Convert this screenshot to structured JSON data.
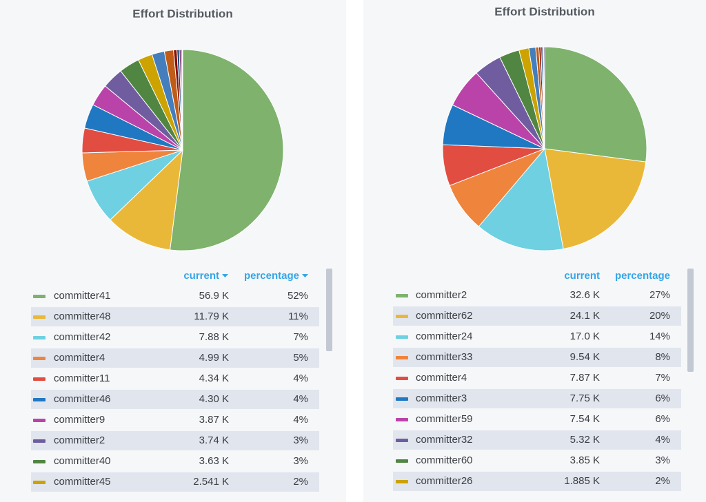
{
  "chart_data": [
    {
      "type": "pie",
      "title": "Effort Distribution",
      "columns": [
        "current",
        "percentage"
      ],
      "categories": [
        "committer41",
        "committer48",
        "committer42",
        "committer4",
        "committer11",
        "committer46",
        "committer9",
        "committer2",
        "committer40",
        "committer45",
        null,
        null,
        null,
        null,
        null,
        null,
        null
      ],
      "values": [
        56900,
        11790,
        7880,
        4990,
        4340,
        4300,
        3870,
        3740,
        3630,
        2541,
        2200,
        1600,
        600,
        400,
        300,
        200,
        100
      ],
      "value_labels": [
        "56.9 K",
        "11.79 K",
        "7.88 K",
        "4.99 K",
        "4.34 K",
        "4.30 K",
        "3.87 K",
        "3.74 K",
        "3.63 K",
        "2.541 K",
        null,
        null,
        null,
        null,
        null,
        null,
        null
      ],
      "percentages": [
        52,
        11,
        7,
        5,
        4,
        4,
        4,
        3,
        3,
        2,
        null,
        null,
        null,
        null,
        null,
        null,
        null
      ],
      "percentage_labels": [
        "52%",
        "11%",
        "7%",
        "5%",
        "4%",
        "4%",
        "4%",
        "3%",
        "3%",
        "2%",
        null,
        null,
        null,
        null,
        null,
        null,
        null
      ],
      "colors": [
        "#7eb26d",
        "#eab839",
        "#6ed0e0",
        "#ef843c",
        "#e24d42",
        "#1f78c1",
        "#ba43a9",
        "#705da0",
        "#508642",
        "#cca300",
        "#447ebc",
        "#c15c17",
        "#890f02",
        "#0a437c",
        "#6d1f62",
        "#584477",
        "#b7dbab"
      ]
    },
    {
      "type": "pie",
      "title": "Effort Distribution",
      "columns": [
        "current",
        "percentage"
      ],
      "categories": [
        "committer2",
        "committer62",
        "committer24",
        "committer33",
        "committer4",
        "committer3",
        "committer59",
        "committer32",
        "committer60",
        "committer26",
        null,
        null,
        null,
        null,
        null,
        null
      ],
      "values": [
        32600,
        24100,
        17000,
        9540,
        7870,
        7750,
        7540,
        5320,
        3850,
        1885,
        1300,
        600,
        400,
        300,
        200,
        200
      ],
      "value_labels": [
        "32.6 K",
        "24.1 K",
        "17.0 K",
        "9.54 K",
        "7.87 K",
        "7.75 K",
        "7.54 K",
        "5.32 K",
        "3.85 K",
        "1.885 K",
        null,
        null,
        null,
        null,
        null,
        null
      ],
      "percentages": [
        27,
        20,
        14,
        8,
        7,
        6,
        6,
        4,
        3,
        2,
        null,
        null,
        null,
        null,
        null,
        null
      ],
      "percentage_labels": [
        "27%",
        "20%",
        "14%",
        "8%",
        "7%",
        "6%",
        "6%",
        "4%",
        "3%",
        "2%",
        null,
        null,
        null,
        null,
        null,
        null
      ],
      "colors": [
        "#7eb26d",
        "#eab839",
        "#6ed0e0",
        "#ef843c",
        "#e24d42",
        "#1f78c1",
        "#ba43a9",
        "#705da0",
        "#508642",
        "#cca300",
        "#447ebc",
        "#c15c17",
        "#890f02",
        "#0a437c",
        "#6d1f62",
        "#584477"
      ]
    }
  ]
}
